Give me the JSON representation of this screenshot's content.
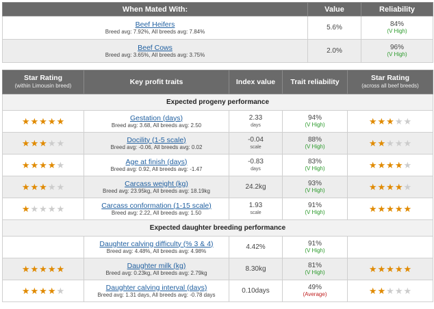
{
  "mating": {
    "headers": [
      "When Mated With:",
      "Value",
      "Reliability"
    ],
    "rows": [
      {
        "name": "Beef Heifers",
        "avg": "Breed avg: 7.92%, All breeds avg: 7.84%",
        "value": "5.6%",
        "reliability": "84%",
        "tag": "(V High)"
      },
      {
        "name": "Beef Cows",
        "avg": "Breed avg: 3.65%, All breeds avg: 3.75%",
        "value": "2.0%",
        "reliability": "96%",
        "tag": "(V High)"
      }
    ]
  },
  "traits": {
    "headers": {
      "star_within": "Star Rating",
      "star_within_sub": "(within Limousin breed)",
      "key": "Key profit traits",
      "index": "Index value",
      "trait_rel": "Trait reliability",
      "star_across": "Star Rating",
      "star_across_sub": "(across all beef breeds)"
    },
    "section1": "Expected progeny performance",
    "section2": "Expected daughter breeding performance",
    "rows": [
      {
        "name": "Gestation (days)",
        "avg": "Breed avg: 3.68, All breeds avg: 2.50",
        "value": "2.33",
        "unit": "days",
        "rel": "94%",
        "tag": "(V High)",
        "within": 5,
        "across": 3
      },
      {
        "name": "Docility (1-5 scale)",
        "avg": "Breed avg: -0.06, All breeds avg: 0.02",
        "value": "-0.04",
        "unit": "scale",
        "rel": "88%",
        "tag": "(V High)",
        "within": 3,
        "across": 2
      },
      {
        "name": "Age at finish (days)",
        "avg": "Breed avg: 0.92, All breeds avg: -1.47",
        "value": "-0.83",
        "unit": "days",
        "rel": "83%",
        "tag": "(V High)",
        "within": 4,
        "across": 4
      },
      {
        "name": "Carcass weight (kg)",
        "avg": "Breed avg: 23.95kg, All breeds avg: 18.19kg",
        "value": "24.2kg",
        "unit": "",
        "rel": "93%",
        "tag": "(V High)",
        "within": 3,
        "across": 4
      },
      {
        "name": "Carcass conformation (1-15 scale)",
        "avg": "Breed avg: 2.22, All breeds avg: 1.50",
        "value": "1.93",
        "unit": "scale",
        "rel": "91%",
        "tag": "(V High)",
        "within": 1,
        "across": 5
      },
      {
        "name": "Daughter calving difficulty (% 3 & 4)",
        "avg": "Breed avg: 4.48%, All breeds avg: 4.98%",
        "value": "4.42%",
        "unit": "",
        "rel": "91%",
        "tag": "(V High)",
        "within": 0,
        "across": 0
      },
      {
        "name": "Daughter milk (kg)",
        "avg": "Breed avg: 0.23kg, All breeds avg: 2.79kg",
        "value": "8.30kg",
        "unit": "",
        "rel": "81%",
        "tag": "(V High)",
        "within": 5,
        "across": 5
      },
      {
        "name": "Daughter calving interval (days)",
        "avg": "Breed avg: 1.31 days, All breeds avg: -0.78 days",
        "value": "0.10days",
        "unit": "",
        "rel": "49%",
        "tag": "(Average)",
        "within": 4,
        "across": 2
      }
    ]
  }
}
